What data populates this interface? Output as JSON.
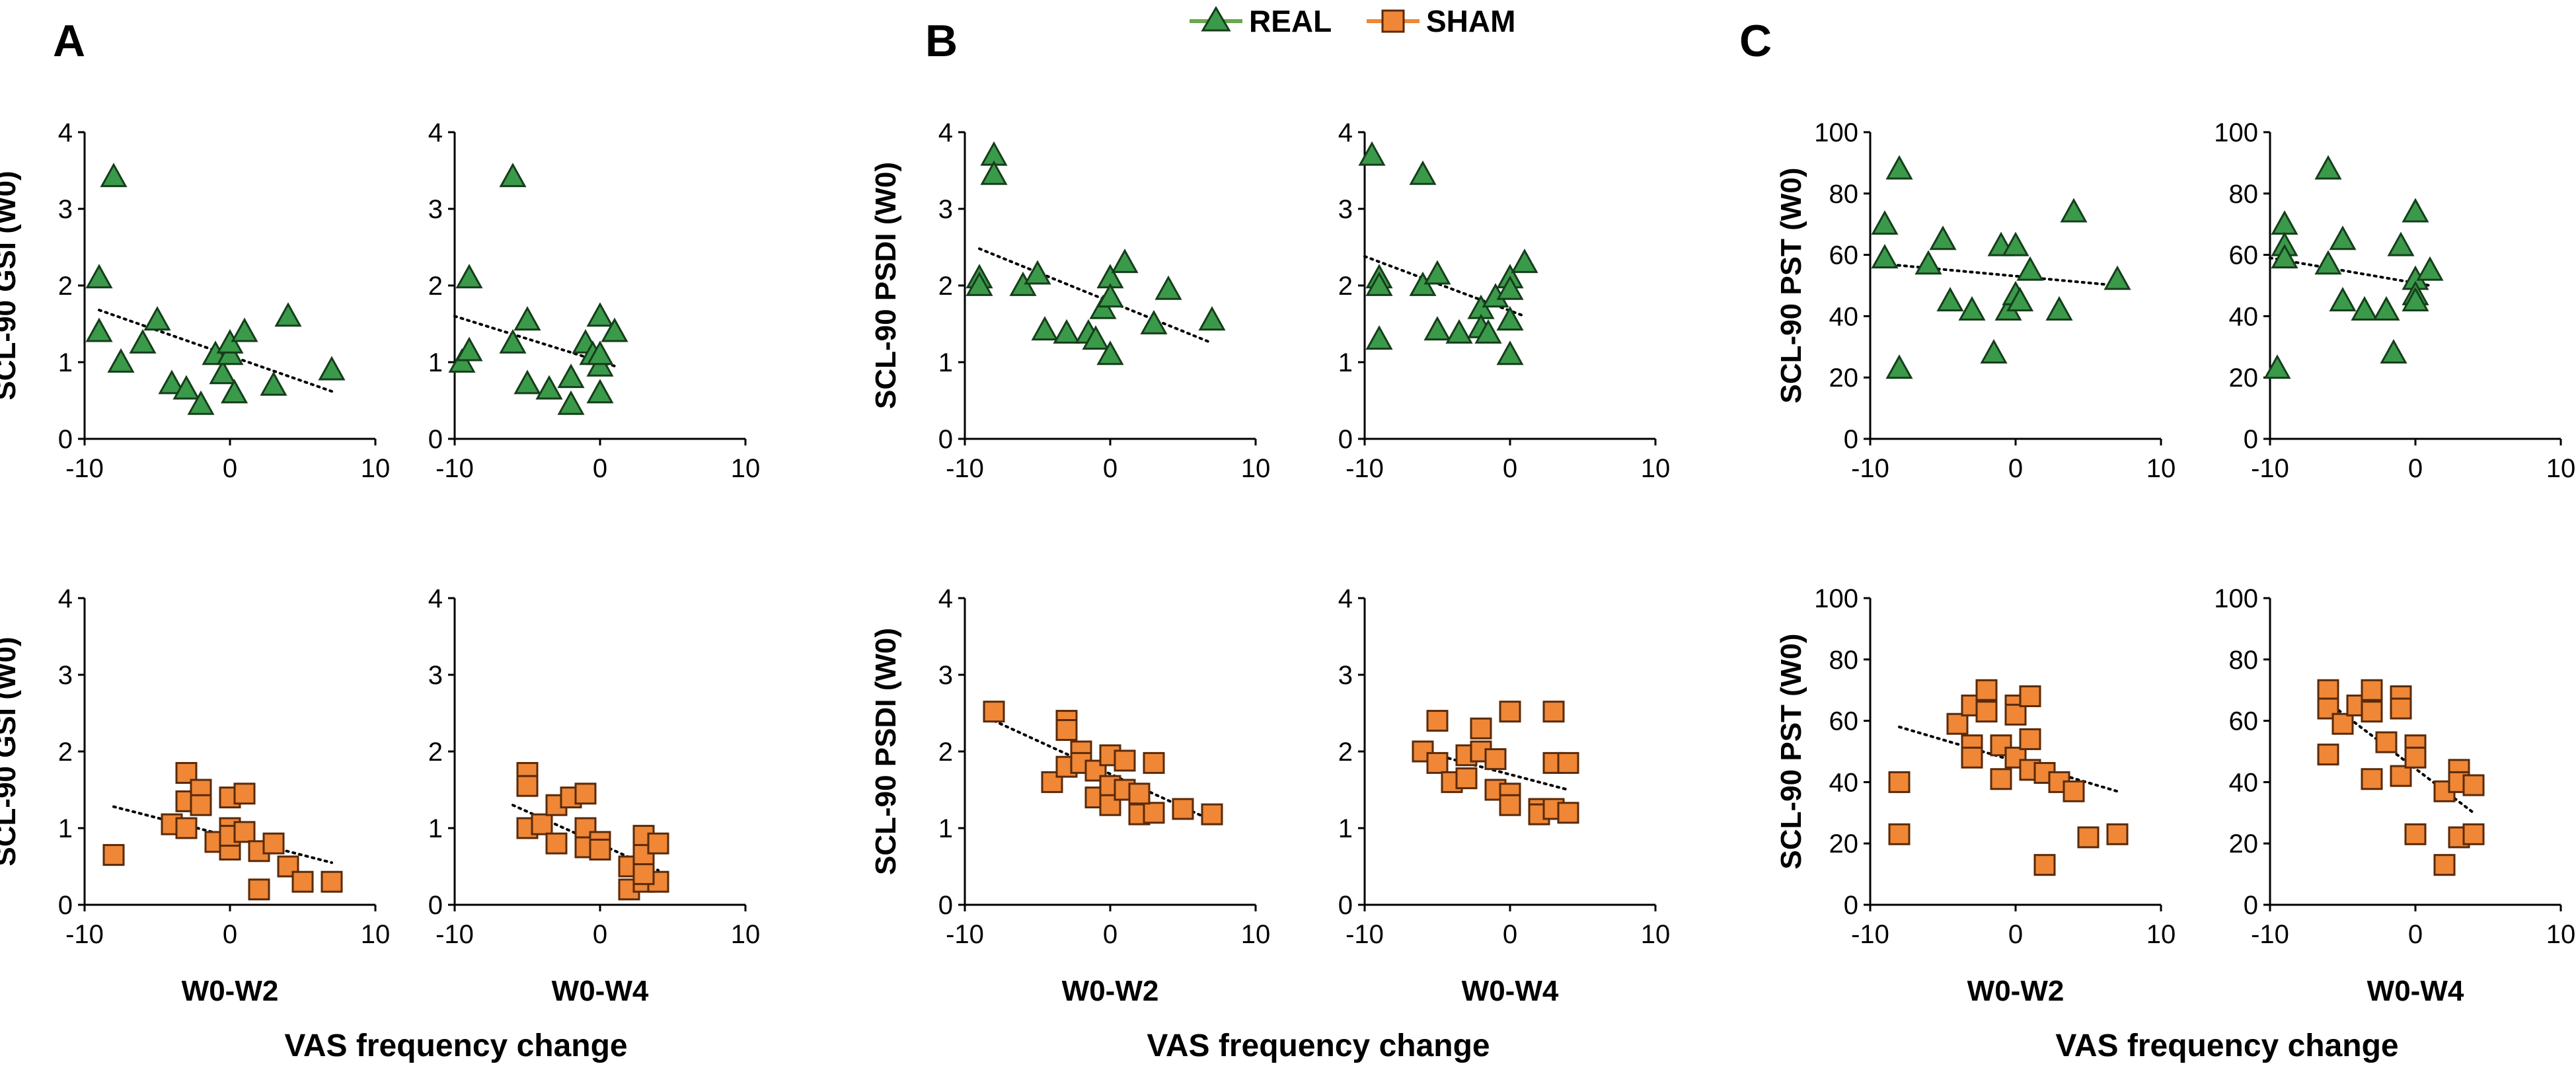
{
  "legend": [
    {
      "label": "REAL",
      "color": "#3a9a4a",
      "edge": "#163d1b",
      "line": "#6aa84f",
      "marker": "triangle"
    },
    {
      "label": "SHAM",
      "color": "#ef8737",
      "edge": "#5a2a08",
      "line": "#ef8737",
      "marker": "square"
    }
  ],
  "panel_letters": [
    "A",
    "B",
    "C"
  ],
  "bottom_label": "VAS frequency change",
  "chart_data": [
    {
      "id": "A-real-w2",
      "type": "scatter",
      "series": "REAL",
      "xlabel": "",
      "ylabel": "SCL-90 GSI (W0)",
      "xlim": [
        -10,
        10
      ],
      "ylim": [
        0,
        4
      ],
      "xticks": [
        "-10",
        "0",
        "10"
      ],
      "yticks": [
        "0",
        "1",
        "2",
        "3",
        "4"
      ],
      "points": [
        [
          -8,
          3.42
        ],
        [
          -9,
          2.1
        ],
        [
          -9,
          1.4
        ],
        [
          -7.5,
          1.0
        ],
        [
          -6,
          1.25
        ],
        [
          -5,
          1.55
        ],
        [
          -4,
          0.72
        ],
        [
          -3,
          0.65
        ],
        [
          -2,
          0.45
        ],
        [
          -1,
          1.1
        ],
        [
          -0.5,
          0.85
        ],
        [
          0,
          1.1
        ],
        [
          0,
          1.25
        ],
        [
          0.3,
          0.6
        ],
        [
          1,
          1.4
        ],
        [
          3,
          0.7
        ],
        [
          4,
          1.6
        ],
        [
          7,
          0.9
        ]
      ],
      "trend": [
        [
          -9,
          1.68
        ],
        [
          7,
          0.62
        ]
      ]
    },
    {
      "id": "A-real-w4",
      "type": "scatter",
      "series": "REAL",
      "xlabel": "",
      "ylabel": "",
      "xlim": [
        -10,
        10
      ],
      "ylim": [
        0,
        4
      ],
      "xticks": [
        "-10",
        "0",
        "10"
      ],
      "yticks": [
        "0",
        "1",
        "2",
        "3",
        "4"
      ],
      "points": [
        [
          -9.5,
          1.0
        ],
        [
          -9,
          1.15
        ],
        [
          -9,
          2.1
        ],
        [
          -6,
          3.42
        ],
        [
          -6,
          1.25
        ],
        [
          -5,
          1.55
        ],
        [
          -5,
          0.72
        ],
        [
          -3.5,
          0.65
        ],
        [
          -2,
          0.8
        ],
        [
          -2,
          0.45
        ],
        [
          -1,
          1.25
        ],
        [
          -0.5,
          1.1
        ],
        [
          0,
          0.95
        ],
        [
          0,
          1.6
        ],
        [
          0,
          1.1
        ],
        [
          0,
          0.6
        ],
        [
          1,
          1.4
        ]
      ],
      "trend": [
        [
          -10,
          1.6
        ],
        [
          1,
          0.95
        ]
      ]
    },
    {
      "id": "A-sham-w2",
      "type": "scatter",
      "series": "SHAM",
      "xlabel": "W0-W2",
      "ylabel": "SCL-90 GSI (W0)",
      "xlim": [
        -10,
        10
      ],
      "ylim": [
        0,
        4
      ],
      "xticks": [
        "-10",
        "0",
        "10"
      ],
      "yticks": [
        "0",
        "1",
        "2",
        "3",
        "4"
      ],
      "points": [
        [
          -8,
          0.65
        ],
        [
          -4,
          1.05
        ],
        [
          -3,
          1.72
        ],
        [
          -3,
          1.35
        ],
        [
          -3,
          1.0
        ],
        [
          -2,
          1.5
        ],
        [
          -2,
          1.3
        ],
        [
          -1,
          0.82
        ],
        [
          0,
          1.4
        ],
        [
          0,
          1.0
        ],
        [
          0,
          0.72
        ],
        [
          0,
          0.9
        ],
        [
          1,
          1.45
        ],
        [
          1,
          0.95
        ],
        [
          2,
          0.7
        ],
        [
          2,
          0.2
        ],
        [
          3,
          0.8
        ],
        [
          4,
          0.5
        ],
        [
          5,
          0.3
        ],
        [
          7,
          0.3
        ]
      ],
      "trend": [
        [
          -8,
          1.28
        ],
        [
          7,
          0.55
        ]
      ]
    },
    {
      "id": "A-sham-w4",
      "type": "scatter",
      "series": "SHAM",
      "xlabel": "W0-W4",
      "ylabel": "",
      "xlim": [
        -10,
        10
      ],
      "ylim": [
        0,
        4
      ],
      "xticks": [
        "-10",
        "0",
        "10"
      ],
      "yticks": [
        "0",
        "1",
        "2",
        "3",
        "4"
      ],
      "points": [
        [
          -5,
          1.72
        ],
        [
          -5,
          1.55
        ],
        [
          -5,
          1.0
        ],
        [
          -4,
          1.05
        ],
        [
          -3,
          0.8
        ],
        [
          -3,
          1.3
        ],
        [
          -2,
          1.4
        ],
        [
          -1,
          1.45
        ],
        [
          -1,
          1.0
        ],
        [
          -1,
          0.75
        ],
        [
          0,
          0.82
        ],
        [
          0,
          0.72
        ],
        [
          2,
          0.5
        ],
        [
          2,
          0.2
        ],
        [
          3,
          0.9
        ],
        [
          3,
          0.65
        ],
        [
          3,
          0.3
        ],
        [
          4,
          0.8
        ],
        [
          4,
          0.3
        ],
        [
          3,
          0.4
        ]
      ],
      "trend": [
        [
          -6,
          1.3
        ],
        [
          4,
          0.45
        ]
      ]
    },
    {
      "id": "B-real-w2",
      "type": "scatter",
      "series": "REAL",
      "xlabel": "",
      "ylabel": "SCL-90 PSDI (W0)",
      "xlim": [
        -10,
        10
      ],
      "ylim": [
        0,
        4
      ],
      "xticks": [
        "-10",
        "0",
        "10"
      ],
      "yticks": [
        "0",
        "1",
        "2",
        "3",
        "4"
      ],
      "points": [
        [
          -8,
          3.7
        ],
        [
          -8,
          3.45
        ],
        [
          -9,
          2.1
        ],
        [
          -9,
          2.0
        ],
        [
          -6,
          2.0
        ],
        [
          -5,
          2.15
        ],
        [
          -4.5,
          1.42
        ],
        [
          -3,
          1.38
        ],
        [
          -1.5,
          1.38
        ],
        [
          -1,
          1.3
        ],
        [
          -0.5,
          1.7
        ],
        [
          0,
          2.1
        ],
        [
          0,
          1.85
        ],
        [
          0,
          1.1
        ],
        [
          1,
          2.3
        ],
        [
          3,
          1.5
        ],
        [
          4,
          1.95
        ],
        [
          7,
          1.55
        ]
      ],
      "trend": [
        [
          -9,
          2.48
        ],
        [
          7,
          1.25
        ]
      ]
    },
    {
      "id": "B-real-w4",
      "type": "scatter",
      "series": "REAL",
      "xlabel": "",
      "ylabel": "",
      "xlim": [
        -10,
        10
      ],
      "ylim": [
        0,
        4
      ],
      "xticks": [
        "-10",
        "0",
        "10"
      ],
      "yticks": [
        "0",
        "1",
        "2",
        "3",
        "4"
      ],
      "points": [
        [
          -9.5,
          3.7
        ],
        [
          -9,
          2.1
        ],
        [
          -9,
          2.0
        ],
        [
          -9,
          1.3
        ],
        [
          -6,
          3.45
        ],
        [
          -6,
          2.0
        ],
        [
          -5,
          2.15
        ],
        [
          -5,
          1.42
        ],
        [
          -3.5,
          1.38
        ],
        [
          -2,
          1.7
        ],
        [
          -2,
          1.45
        ],
        [
          -1.5,
          1.38
        ],
        [
          -1,
          1.85
        ],
        [
          0,
          2.1
        ],
        [
          0,
          1.95
        ],
        [
          0,
          1.55
        ],
        [
          0,
          1.1
        ],
        [
          1,
          2.3
        ]
      ],
      "trend": [
        [
          -10,
          2.38
        ],
        [
          1,
          1.6
        ]
      ]
    },
    {
      "id": "B-sham-w2",
      "type": "scatter",
      "series": "SHAM",
      "xlabel": "W0-W2",
      "ylabel": "SCL-90 PSDI (W0)",
      "xlim": [
        -10,
        10
      ],
      "ylim": [
        0,
        4
      ],
      "xticks": [
        "-10",
        "0",
        "10"
      ],
      "yticks": [
        "0",
        "1",
        "2",
        "3",
        "4"
      ],
      "points": [
        [
          -8,
          2.52
        ],
        [
          -4,
          1.6
        ],
        [
          -3,
          2.4
        ],
        [
          -3,
          2.28
        ],
        [
          -3,
          1.8
        ],
        [
          -2,
          2.0
        ],
        [
          -2,
          1.85
        ],
        [
          -1,
          1.75
        ],
        [
          -1,
          1.4
        ],
        [
          0,
          1.95
        ],
        [
          0,
          1.55
        ],
        [
          0,
          1.3
        ],
        [
          1,
          1.88
        ],
        [
          1,
          1.5
        ],
        [
          2,
          1.18
        ],
        [
          3,
          1.85
        ],
        [
          3,
          1.2
        ],
        [
          5,
          1.25
        ],
        [
          7,
          1.18
        ],
        [
          2,
          1.45
        ]
      ],
      "trend": [
        [
          -8,
          2.4
        ],
        [
          7,
          1.1
        ]
      ]
    },
    {
      "id": "B-sham-w4",
      "type": "scatter",
      "series": "SHAM",
      "xlabel": "W0-W4",
      "ylabel": "",
      "xlim": [
        -10,
        10
      ],
      "ylim": [
        0,
        4
      ],
      "xticks": [
        "-10",
        "0",
        "10"
      ],
      "yticks": [
        "0",
        "1",
        "2",
        "3",
        "4"
      ],
      "points": [
        [
          -6,
          2.0
        ],
        [
          -5,
          2.4
        ],
        [
          -5,
          1.85
        ],
        [
          -4,
          1.6
        ],
        [
          -3,
          1.95
        ],
        [
          -3,
          1.65
        ],
        [
          -2,
          2.3
        ],
        [
          -2,
          2.0
        ],
        [
          -1,
          1.9
        ],
        [
          -1,
          1.5
        ],
        [
          0,
          2.52
        ],
        [
          0,
          1.45
        ],
        [
          0,
          1.3
        ],
        [
          2,
          1.25
        ],
        [
          2,
          1.18
        ],
        [
          3,
          2.52
        ],
        [
          3,
          1.85
        ],
        [
          3,
          1.25
        ],
        [
          4,
          1.85
        ],
        [
          4,
          1.2
        ]
      ],
      "trend": [
        [
          -6,
          2.0
        ],
        [
          4,
          1.5
        ]
      ]
    },
    {
      "id": "C-real-w2",
      "type": "scatter",
      "series": "REAL",
      "xlabel": "",
      "ylabel": "SCL-90 PST (W0)",
      "xlim": [
        -10,
        10
      ],
      "ylim": [
        0,
        100
      ],
      "xticks": [
        "-10",
        "0",
        "10"
      ],
      "yticks": [
        "0",
        "20",
        "40",
        "60",
        "80",
        "100"
      ],
      "points": [
        [
          -8,
          88
        ],
        [
          -9,
          70
        ],
        [
          -9,
          59
        ],
        [
          -8,
          23
        ],
        [
          -6,
          57
        ],
        [
          -5,
          65
        ],
        [
          -4.5,
          45
        ],
        [
          -3,
          42
        ],
        [
          -1.5,
          28
        ],
        [
          -1,
          63
        ],
        [
          -0.5,
          42
        ],
        [
          0,
          63
        ],
        [
          0,
          47
        ],
        [
          0.3,
          45
        ],
        [
          1,
          55
        ],
        [
          3,
          42
        ],
        [
          4,
          74
        ],
        [
          7,
          52
        ]
      ],
      "trend": [
        [
          -9,
          57
        ],
        [
          7,
          50
        ]
      ]
    },
    {
      "id": "C-real-w4",
      "type": "scatter",
      "series": "REAL",
      "xlabel": "",
      "ylabel": "",
      "xlim": [
        -10,
        10
      ],
      "ylim": [
        0,
        100
      ],
      "xticks": [
        "-10",
        "0",
        "10"
      ],
      "yticks": [
        "0",
        "20",
        "40",
        "60",
        "80",
        "100"
      ],
      "points": [
        [
          -9.5,
          23
        ],
        [
          -9,
          70
        ],
        [
          -9,
          63
        ],
        [
          -9,
          59
        ],
        [
          -6,
          88
        ],
        [
          -6,
          57
        ],
        [
          -5,
          65
        ],
        [
          -5,
          45
        ],
        [
          -3.5,
          42
        ],
        [
          -2,
          42
        ],
        [
          -1.5,
          28
        ],
        [
          -1,
          63
        ],
        [
          0,
          74
        ],
        [
          0,
          52
        ],
        [
          0,
          47
        ],
        [
          0,
          45
        ],
        [
          1,
          55
        ]
      ],
      "trend": [
        [
          -10,
          59
        ],
        [
          1,
          50
        ]
      ]
    },
    {
      "id": "C-sham-w2",
      "type": "scatter",
      "series": "SHAM",
      "xlabel": "W0-W2",
      "ylabel": "SCL-90 PST (W0)",
      "xlim": [
        -10,
        10
      ],
      "ylim": [
        0,
        100
      ],
      "xticks": [
        "-10",
        "0",
        "10"
      ],
      "yticks": [
        "0",
        "20",
        "40",
        "60",
        "80",
        "100"
      ],
      "points": [
        [
          -8,
          40
        ],
        [
          -8,
          23
        ],
        [
          -4,
          59
        ],
        [
          -3,
          65
        ],
        [
          -3,
          52
        ],
        [
          -3,
          48
        ],
        [
          -2,
          70
        ],
        [
          -2,
          63
        ],
        [
          -1,
          52
        ],
        [
          -1,
          41
        ],
        [
          0,
          65
        ],
        [
          0,
          62
        ],
        [
          0,
          48
        ],
        [
          1,
          68
        ],
        [
          1,
          54
        ],
        [
          1,
          44
        ],
        [
          2,
          43
        ],
        [
          2,
          13
        ],
        [
          3,
          40
        ],
        [
          4,
          37
        ],
        [
          5,
          22
        ],
        [
          7,
          23
        ]
      ],
      "trend": [
        [
          -8,
          58
        ],
        [
          7,
          37
        ]
      ]
    },
    {
      "id": "C-sham-w4",
      "type": "scatter",
      "series": "SHAM",
      "xlabel": "W0-W4",
      "ylabel": "",
      "xlim": [
        -10,
        10
      ],
      "ylim": [
        0,
        100
      ],
      "xticks": [
        "-10",
        "0",
        "10"
      ],
      "yticks": [
        "0",
        "20",
        "40",
        "60",
        "80",
        "100"
      ],
      "points": [
        [
          -6,
          70
        ],
        [
          -6,
          64
        ],
        [
          -6,
          49
        ],
        [
          -5,
          59
        ],
        [
          -4,
          65
        ],
        [
          -3,
          70
        ],
        [
          -3,
          63
        ],
        [
          -3,
          41
        ],
        [
          -2,
          53
        ],
        [
          -1,
          68
        ],
        [
          -1,
          64
        ],
        [
          -1,
          42
        ],
        [
          0,
          52
        ],
        [
          0,
          48
        ],
        [
          0,
          23
        ],
        [
          2,
          37
        ],
        [
          2,
          13
        ],
        [
          3,
          44
        ],
        [
          3,
          40
        ],
        [
          3,
          22
        ],
        [
          4,
          39
        ],
        [
          4,
          23
        ]
      ],
      "trend": [
        [
          -6,
          66
        ],
        [
          4,
          30
        ]
      ]
    }
  ]
}
